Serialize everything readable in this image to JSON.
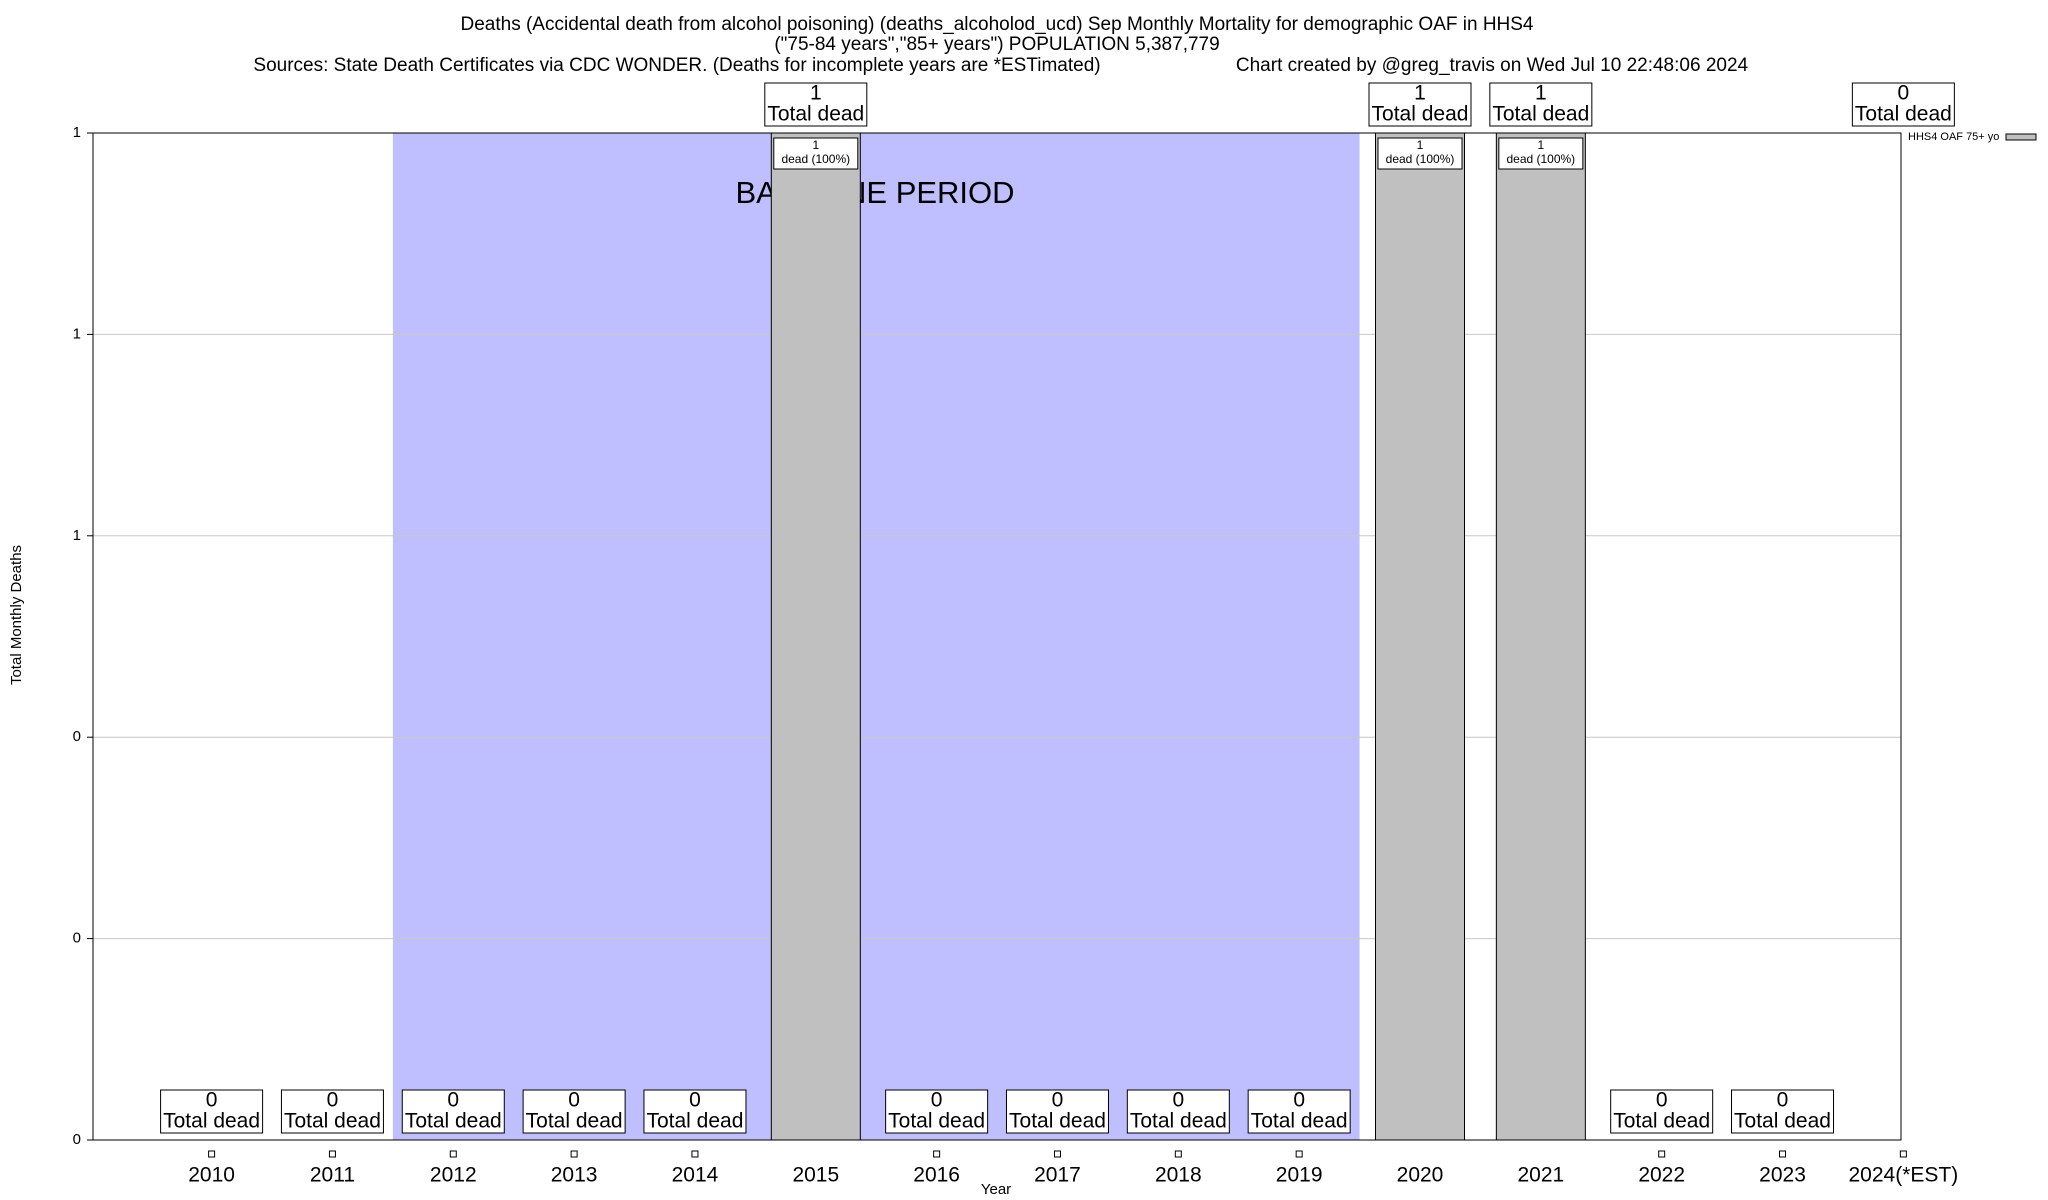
{
  "chart_data": {
    "type": "bar",
    "title_lines": [
      "Deaths (Accidental death from alcohol poisoning) (deaths_alcoholod_ucd) Sep Monthly Mortality for demographic OAF in HHS4",
      "(\"75-84 years\",\"85+ years\") POPULATION 5,387,779"
    ],
    "sources": "Sources: State Death Certificates via CDC WONDER. (Deaths for incomplete years are *ESTimated)",
    "credit": "Chart created by @greg_travis on Wed Jul 10 22:48:06 2024",
    "x_label": "Year",
    "y_label": "Total Monthly Deaths",
    "categories": [
      "2010",
      "2011",
      "2012",
      "2013",
      "2014",
      "2015",
      "2016",
      "2017",
      "2018",
      "2019",
      "2020",
      "2021",
      "2022",
      "2023",
      "2024(*EST)"
    ],
    "series": [
      {
        "name": "HHS4 OAF 75+ yo",
        "color": "#c0c0c0",
        "values": [
          0,
          0,
          0,
          0,
          0,
          1,
          0,
          0,
          0,
          0,
          1,
          1,
          0,
          0,
          0
        ]
      }
    ],
    "total_label": "Total dead",
    "bar_notes": [
      null,
      null,
      null,
      null,
      null,
      "dead (100%)",
      null,
      null,
      null,
      null,
      "dead (100%)",
      "dead (100%)",
      null,
      null,
      null
    ],
    "baseline": {
      "label": "BASELINE PERIOD",
      "start": "2012",
      "end": "2019",
      "color": "#bfbfff"
    },
    "ylim": [
      0,
      1
    ],
    "yticks": [
      0,
      {
        "value": 0.2,
        "label": "0"
      },
      {
        "value": 0.4,
        "label": "0"
      },
      {
        "value": 0.6,
        "label": "1"
      },
      {
        "value": 0.8,
        "label": "1"
      },
      1
    ],
    "grid": true,
    "legend": "right"
  }
}
